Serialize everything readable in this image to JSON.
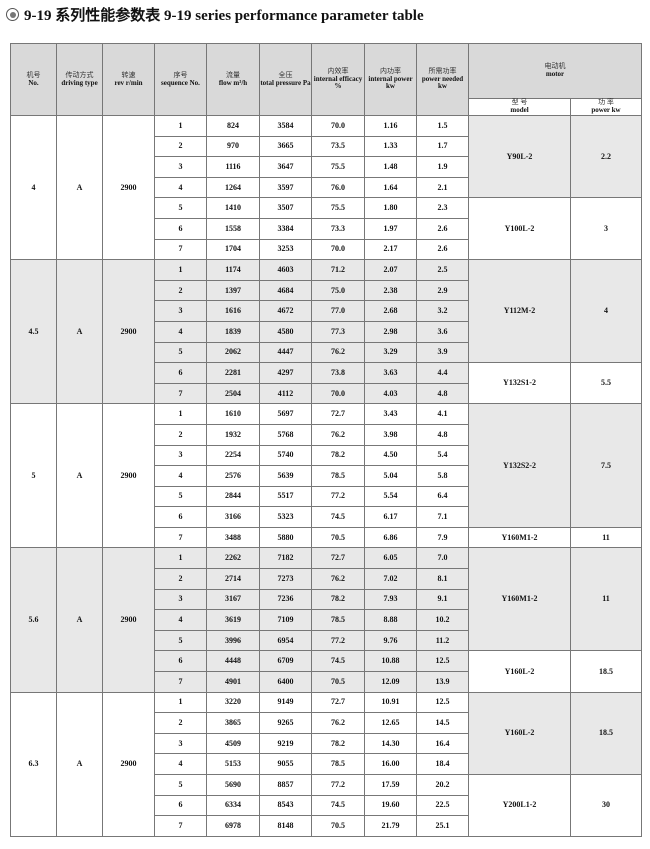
{
  "title": {
    "icon": "target-circle-icon",
    "text": "9-19 系列性能参数表  9-19 series performance parameter table"
  },
  "headers": [
    {
      "cn": "机号",
      "en": "No."
    },
    {
      "cn": "传动方式",
      "en": "driving type"
    },
    {
      "cn": "转速",
      "en": "rev r/min"
    },
    {
      "cn": "序号",
      "en": "sequence No."
    },
    {
      "cn": "流量",
      "en": "flow m³/h"
    },
    {
      "cn": "全压",
      "en": "total pressure Pa"
    },
    {
      "cn": "内效率",
      "en": "internal efficacy %"
    },
    {
      "cn": "内功率",
      "en": "internal power kw"
    },
    {
      "cn": "所需功率",
      "en": "power needed kw"
    }
  ],
  "motor_header": {
    "cn": "电动机",
    "en": "motor",
    "model_cn": "型 号",
    "model_en": "model",
    "power_cn": "功 率",
    "power_en": "power kw"
  },
  "groups": [
    {
      "no": "4",
      "type": "A",
      "rev": "2900",
      "shaded": false,
      "rows": [
        [
          "1",
          "824",
          "3584",
          "70.0",
          "1.16",
          "1.5"
        ],
        [
          "2",
          "970",
          "3665",
          "73.5",
          "1.33",
          "1.7"
        ],
        [
          "3",
          "1116",
          "3647",
          "75.5",
          "1.48",
          "1.9"
        ],
        [
          "4",
          "1264",
          "3597",
          "76.0",
          "1.64",
          "2.1"
        ],
        [
          "5",
          "1410",
          "3507",
          "75.5",
          "1.80",
          "2.3"
        ],
        [
          "6",
          "1558",
          "3384",
          "73.3",
          "1.97",
          "2.6"
        ],
        [
          "7",
          "1704",
          "3253",
          "70.0",
          "2.17",
          "2.6"
        ]
      ],
      "motors": [
        {
          "model": "Y90L-2",
          "power": "2.2",
          "span": 4,
          "shaded": true
        },
        {
          "model": "Y100L-2",
          "power": "3",
          "span": 3,
          "shaded": false
        }
      ]
    },
    {
      "no": "4.5",
      "type": "A",
      "rev": "2900",
      "shaded": true,
      "rows": [
        [
          "1",
          "1174",
          "4603",
          "71.2",
          "2.07",
          "2.5"
        ],
        [
          "2",
          "1397",
          "4684",
          "75.0",
          "2.38",
          "2.9"
        ],
        [
          "3",
          "1616",
          "4672",
          "77.0",
          "2.68",
          "3.2"
        ],
        [
          "4",
          "1839",
          "4580",
          "77.3",
          "2.98",
          "3.6"
        ],
        [
          "5",
          "2062",
          "4447",
          "76.2",
          "3.29",
          "3.9"
        ],
        [
          "6",
          "2281",
          "4297",
          "73.8",
          "3.63",
          "4.4"
        ],
        [
          "7",
          "2504",
          "4112",
          "70.0",
          "4.03",
          "4.8"
        ]
      ],
      "motors": [
        {
          "model": "Y112M-2",
          "power": "4",
          "span": 5,
          "shaded": true
        },
        {
          "model": "Y132S1-2",
          "power": "5.5",
          "span": 2,
          "shaded": false
        }
      ]
    },
    {
      "no": "5",
      "type": "A",
      "rev": "2900",
      "shaded": false,
      "rows": [
        [
          "1",
          "1610",
          "5697",
          "72.7",
          "3.43",
          "4.1"
        ],
        [
          "2",
          "1932",
          "5768",
          "76.2",
          "3.98",
          "4.8"
        ],
        [
          "3",
          "2254",
          "5740",
          "78.2",
          "4.50",
          "5.4"
        ],
        [
          "4",
          "2576",
          "5639",
          "78.5",
          "5.04",
          "5.8"
        ],
        [
          "5",
          "2844",
          "5517",
          "77.2",
          "5.54",
          "6.4"
        ],
        [
          "6",
          "3166",
          "5323",
          "74.5",
          "6.17",
          "7.1"
        ],
        [
          "7",
          "3488",
          "5880",
          "70.5",
          "6.86",
          "7.9"
        ]
      ],
      "motors": [
        {
          "model": "Y132S2-2",
          "power": "7.5",
          "span": 6,
          "shaded": true
        },
        {
          "model": "Y160M1-2",
          "power": "11",
          "span": 1,
          "shaded": false
        }
      ]
    },
    {
      "no": "5.6",
      "type": "A",
      "rev": "2900",
      "shaded": true,
      "rows": [
        [
          "1",
          "2262",
          "7182",
          "72.7",
          "6.05",
          "7.0"
        ],
        [
          "2",
          "2714",
          "7273",
          "76.2",
          "7.02",
          "8.1"
        ],
        [
          "3",
          "3167",
          "7236",
          "78.2",
          "7.93",
          "9.1"
        ],
        [
          "4",
          "3619",
          "7109",
          "78.5",
          "8.88",
          "10.2"
        ],
        [
          "5",
          "3996",
          "6954",
          "77.2",
          "9.76",
          "11.2"
        ],
        [
          "6",
          "4448",
          "6709",
          "74.5",
          "10.88",
          "12.5"
        ],
        [
          "7",
          "4901",
          "6400",
          "70.5",
          "12.09",
          "13.9"
        ]
      ],
      "motors": [
        {
          "model": "Y160M1-2",
          "power": "11",
          "span": 5,
          "shaded": true
        },
        {
          "model": "Y160L-2",
          "power": "18.5",
          "span": 2,
          "shaded": false
        }
      ]
    },
    {
      "no": "6.3",
      "type": "A",
      "rev": "2900",
      "shaded": false,
      "rows": [
        [
          "1",
          "3220",
          "9149",
          "72.7",
          "10.91",
          "12.5"
        ],
        [
          "2",
          "3865",
          "9265",
          "76.2",
          "12.65",
          "14.5"
        ],
        [
          "3",
          "4509",
          "9219",
          "78.2",
          "14.30",
          "16.4"
        ],
        [
          "4",
          "5153",
          "9055",
          "78.5",
          "16.00",
          "18.4"
        ],
        [
          "5",
          "5690",
          "8857",
          "77.2",
          "17.59",
          "20.2"
        ],
        [
          "6",
          "6334",
          "8543",
          "74.5",
          "19.60",
          "22.5"
        ],
        [
          "7",
          "6978",
          "8148",
          "70.5",
          "21.79",
          "25.1"
        ]
      ],
      "motors": [
        {
          "model": "Y160L-2",
          "power": "18.5",
          "span": 4,
          "shaded": true
        },
        {
          "model": "Y200L1-2",
          "power": "30",
          "span": 3,
          "shaded": false
        }
      ]
    }
  ]
}
